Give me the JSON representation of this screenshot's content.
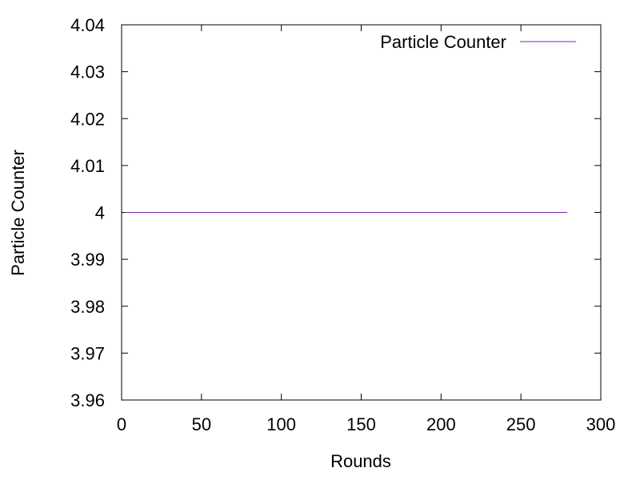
{
  "chart_data": {
    "type": "line",
    "title": "",
    "xlabel": "Rounds",
    "ylabel": "Particle Counter",
    "xlim": [
      0,
      300
    ],
    "ylim": [
      3.96,
      4.04
    ],
    "x_ticks": [
      0,
      50,
      100,
      150,
      200,
      250,
      300
    ],
    "x_tick_labels": [
      "0",
      "50",
      "100",
      "150",
      "200",
      "250",
      "300"
    ],
    "y_ticks": [
      3.96,
      3.97,
      3.98,
      3.99,
      4.0,
      4.01,
      4.02,
      4.03,
      4.04
    ],
    "y_tick_labels": [
      "3.96",
      "3.97",
      "3.98",
      "3.99",
      "4",
      "4.01",
      "4.02",
      "4.03",
      "4.04"
    ],
    "grid": false,
    "legend_position": "top-right",
    "series": [
      {
        "name": "Particle Counter",
        "color": "#7b28a8",
        "x": [
          2,
          279
        ],
        "y": [
          4.0,
          4.0
        ]
      }
    ]
  }
}
